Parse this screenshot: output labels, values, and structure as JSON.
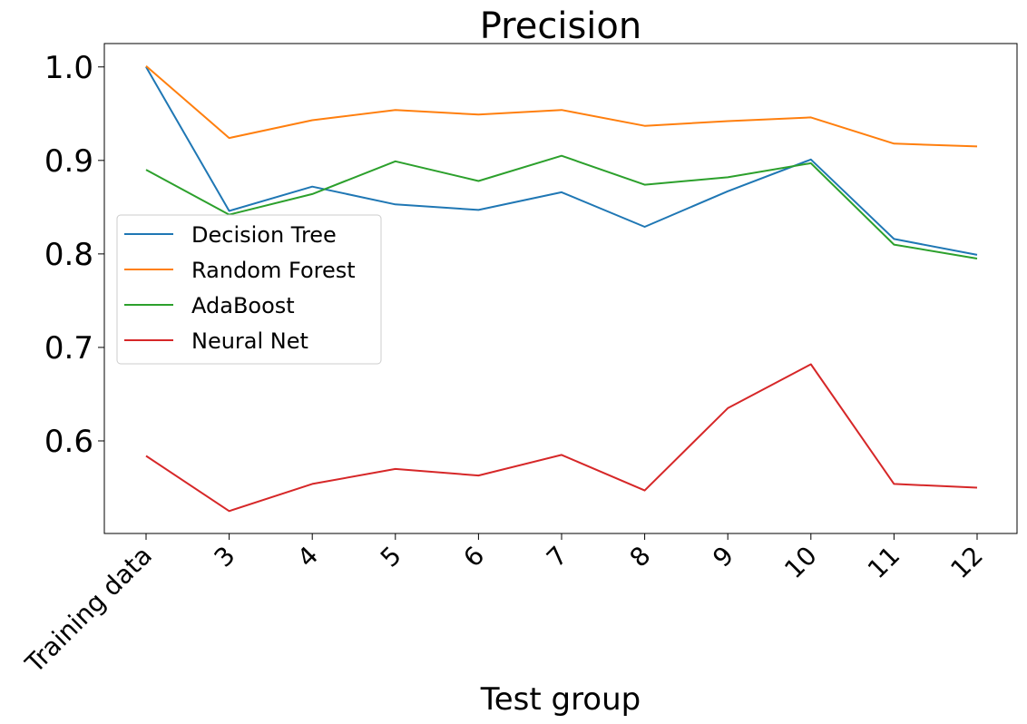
{
  "chart_data": {
    "type": "line",
    "title": "Precision",
    "xlabel": "Test group",
    "ylabel": "",
    "categories": [
      "Training data",
      "3",
      "4",
      "5",
      "6",
      "7",
      "8",
      "9",
      "10",
      "11",
      "12"
    ],
    "ylim": [
      0.501,
      1.025
    ],
    "yticks": [
      "0.6",
      "0.7",
      "0.8",
      "0.9",
      "1.0"
    ],
    "grid": false,
    "legend_position": "center-left",
    "series": [
      {
        "name": "Decision Tree",
        "color": "#1f77b4",
        "values": [
          1.0,
          0.846,
          0.872,
          0.853,
          0.847,
          0.866,
          0.829,
          0.867,
          0.901,
          0.816,
          0.799
        ]
      },
      {
        "name": "Random Forest",
        "color": "#ff7f0e",
        "values": [
          1.001,
          0.924,
          0.943,
          0.954,
          0.949,
          0.954,
          0.937,
          0.942,
          0.946,
          0.918,
          0.915
        ]
      },
      {
        "name": "AdaBoost",
        "color": "#2ca02c",
        "values": [
          0.89,
          0.842,
          0.864,
          0.899,
          0.878,
          0.905,
          0.874,
          0.882,
          0.897,
          0.81,
          0.795
        ]
      },
      {
        "name": "Neural Net",
        "color": "#d62728",
        "values": [
          0.584,
          0.525,
          0.554,
          0.57,
          0.563,
          0.585,
          0.547,
          0.635,
          0.682,
          0.554,
          0.55
        ]
      }
    ]
  }
}
